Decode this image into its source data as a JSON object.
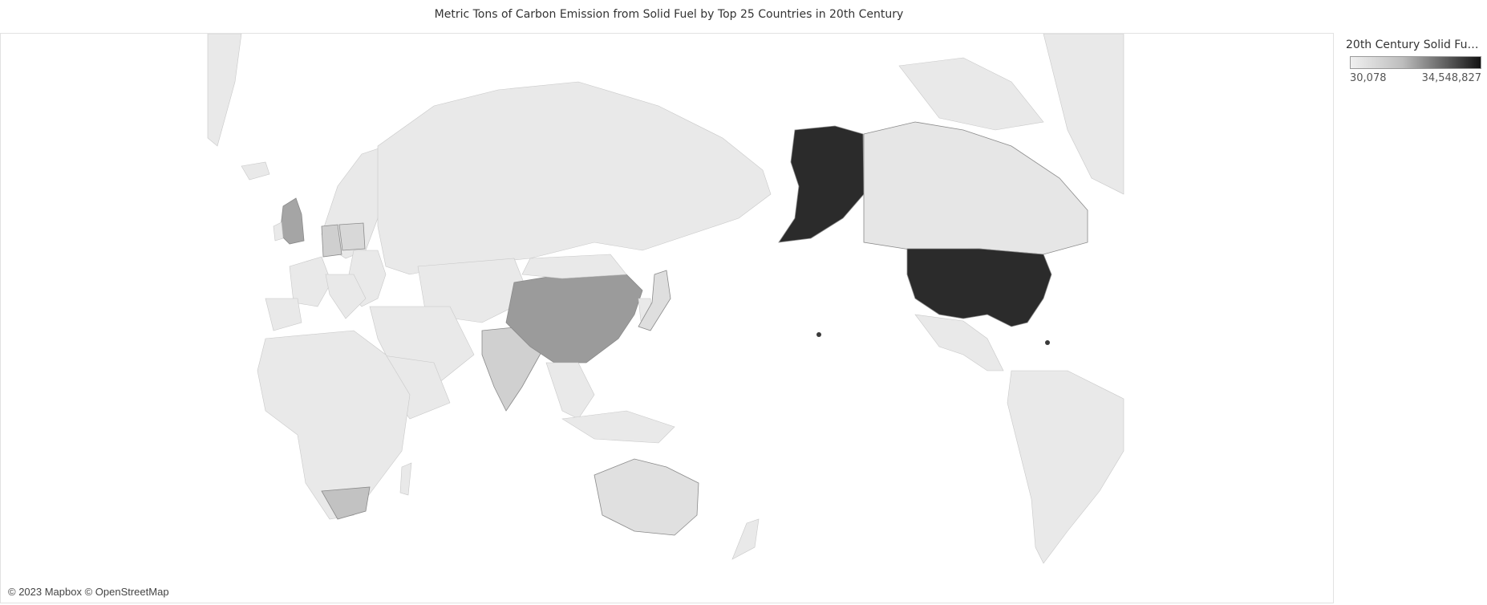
{
  "title": "Metric Tons of Carbon Emission from Solid Fuel by Top 25 Countries in 20th Century",
  "attribution": "© 2023 Mapbox © OpenStreetMap",
  "legend": {
    "title": "20th Century Solid Fuel..",
    "min_label": "30,078",
    "max_label": "34,548,827",
    "min_color": "#f0f0f0",
    "max_color": "#111111"
  },
  "map": {
    "projection": "pacific-centered",
    "shading": {
      "usa": 0.95,
      "alaska": 0.95,
      "china": 0.45,
      "uk": 0.4,
      "germany": 0.2,
      "poland": 0.15,
      "russia": 0.08,
      "india": 0.12,
      "south_africa": 0.2,
      "canada": 0.08,
      "japan": 0.12,
      "australia": 0.1
    }
  }
}
